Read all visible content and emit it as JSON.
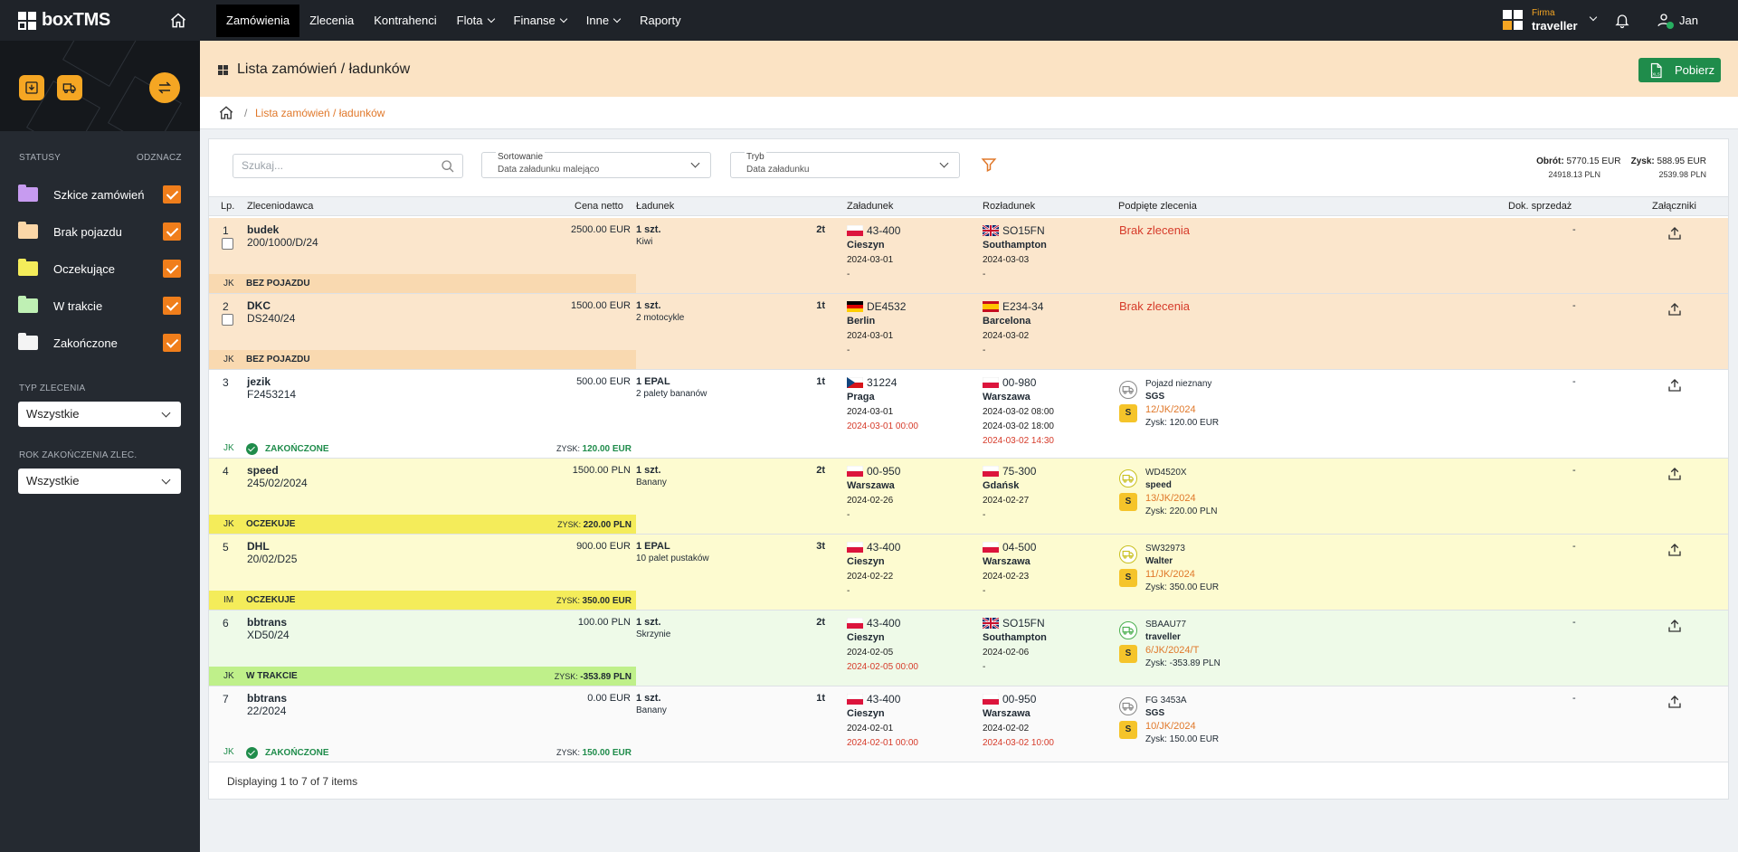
{
  "app": {
    "name": "boxTMS"
  },
  "nav": [
    "Zamówienia",
    "Zlecenia",
    "Kontrahenci",
    "Flota",
    "Finanse",
    "Inne",
    "Raporty"
  ],
  "firm": {
    "label": "Firma",
    "name": "traveller"
  },
  "user": {
    "name": "Jan"
  },
  "sidebar": {
    "statuses_title": "STATUSY",
    "statuses_toggle": "ODZNACZ",
    "statuses": [
      "Szkice zamówień",
      "Brak pojazdu",
      "Oczekujące",
      "W trakcie",
      "Zakończone"
    ],
    "type_title": "TYP ZLECENIA",
    "type_value": "Wszystkie",
    "year_title": "ROK ZAKOŃCZENIA ZLEC.",
    "year_value": "Wszystkie"
  },
  "page": {
    "title": "Lista zamówień / ładunków",
    "xls_label": "Pobierz",
    "xls_tag": "XLS",
    "breadcrumb": "Lista zamówień / ładunków"
  },
  "filters": {
    "search_placeholder": "Szukaj...",
    "sort_label": "Sortowanie",
    "sort_value": "Data załadunku malejąco",
    "mode_label": "Tryb",
    "mode_value": "Data załadunku"
  },
  "totals": {
    "obrot_label": "Obrót:",
    "obrot": "5770.15 EUR",
    "zysk_label": "Zysk:",
    "zysk": "588.95 EUR",
    "obrot_pln": "24918.13 PLN",
    "zysk_pln": "2539.98 PLN"
  },
  "columns": [
    "Lp.",
    "Zleceniodawca",
    "Cena netto",
    "Ładunek",
    "Załadunek",
    "Rozładunek",
    "Podpięte zlecenia",
    "Dok. sprzedaż",
    "Załączniki"
  ],
  "rows": [
    {
      "lp": "1",
      "client": "budek",
      "ref": "200/1000/D/24",
      "price": "2500.00 EUR",
      "cargo": "1 szt.",
      "cargo_desc": "Kiwi",
      "ton": "2t",
      "load_code": "43-400",
      "load_city": "Cieszyn",
      "load_date": "2024-03-01",
      "load_extra": "-",
      "unload_code": "SO15FN",
      "unload_city": "Southampton",
      "unload_date": "2024-03-03",
      "unload_extra": "-",
      "brak": "Brak zlecenia",
      "dok": "-",
      "initials": "JK",
      "status": "BEZ POJAZDU"
    },
    {
      "lp": "2",
      "client": "DKC",
      "ref": "DS240/24",
      "price": "1500.00 EUR",
      "cargo": "1 szt.",
      "cargo_desc": "2 motocykle",
      "ton": "1t",
      "load_code": "DE4532",
      "load_city": "Berlin",
      "load_date": "2024-03-01",
      "load_extra": "-",
      "unload_code": "E234-34",
      "unload_city": "Barcelona",
      "unload_date": "2024-03-02",
      "unload_extra": "-",
      "brak": "Brak zlecenia",
      "dok": "-",
      "initials": "JK",
      "status": "BEZ POJAZDU"
    },
    {
      "lp": "3",
      "client": "jezik",
      "ref": "F2453214",
      "price": "500.00 EUR",
      "cargo": "1 EPAL",
      "cargo_desc": "2 palety bananów",
      "ton": "1t",
      "load_code": "31224",
      "load_city": "Praga",
      "load_date": "2024-03-01",
      "load_extra": "2024-03-01 00:00",
      "unload_code": "00-980",
      "unload_city": "Warszawa",
      "unload_date": "2024-03-02 08:00",
      "unload_date2": "2024-03-02 18:00",
      "unload_extra": "2024-03-02 14:30",
      "veh": "Pojazd nieznany",
      "carrier": "SGS",
      "order": "12/JK/2024",
      "vzysk": "Zysk: 120.00 EUR",
      "dok": "-",
      "initials": "JK",
      "status": "ZAKOŃCZONE",
      "zysk_label": "ZYSK:",
      "zysk": "120.00 EUR"
    },
    {
      "lp": "4",
      "client": "speed",
      "ref": "245/02/2024",
      "price": "1500.00 PLN",
      "cargo": "1 szt.",
      "cargo_desc": "Banany",
      "ton": "2t",
      "load_code": "00-950",
      "load_city": "Warszawa",
      "load_date": "2024-02-26",
      "load_extra": "-",
      "unload_code": "75-300",
      "unload_city": "Gdańsk",
      "unload_date": "2024-02-27",
      "unload_extra": "-",
      "veh": "WD4520X",
      "carrier": "speed",
      "order": "13/JK/2024",
      "vzysk": "Zysk: 220.00 PLN",
      "dok": "-",
      "initials": "JK",
      "status": "OCZEKUJE",
      "zysk_label": "ZYSK:",
      "zysk": "220.00 PLN"
    },
    {
      "lp": "5",
      "client": "DHL",
      "ref": "20/02/D25",
      "price": "900.00 EUR",
      "cargo": "1 EPAL",
      "cargo_desc": "10 palet pustaków",
      "ton": "3t",
      "load_code": "43-400",
      "load_city": "Cieszyn",
      "load_date": "2024-02-22",
      "load_extra": "-",
      "unload_code": "04-500",
      "unload_city": "Warszawa",
      "unload_date": "2024-02-23",
      "unload_extra": "-",
      "veh": "SW32973",
      "carrier": "Walter",
      "order": "11/JK/2024",
      "vzysk": "Zysk: 350.00 EUR",
      "dok": "-",
      "initials": "IM",
      "status": "OCZEKUJE",
      "zysk_label": "ZYSK:",
      "zysk": "350.00 EUR"
    },
    {
      "lp": "6",
      "client": "bbtrans",
      "ref": "XD50/24",
      "price": "100.00 PLN",
      "cargo": "1 szt.",
      "cargo_desc": "Skrzynie",
      "ton": "2t",
      "load_code": "43-400",
      "load_city": "Cieszyn",
      "load_date": "2024-02-05",
      "load_extra": "2024-02-05 00:00",
      "unload_code": "SO15FN",
      "unload_city": "Southampton",
      "unload_date": "2024-02-06",
      "unload_extra": "-",
      "veh": "SBAAU77",
      "carrier": "traveller",
      "order": "6/JK/2024/T",
      "vzysk": "Zysk: -353.89 PLN",
      "dok": "-",
      "initials": "JK",
      "status": "W TRAKCIE",
      "zysk_label": "ZYSK:",
      "zysk": "-353.89 PLN"
    },
    {
      "lp": "7",
      "client": "bbtrans",
      "ref": "22/2024",
      "price": "0.00 EUR",
      "cargo": "1 szt.",
      "cargo_desc": "Banany",
      "ton": "1t",
      "load_code": "43-400",
      "load_city": "Cieszyn",
      "load_date": "2024-02-01",
      "load_extra": "2024-02-01 00:00",
      "unload_code": "00-950",
      "unload_city": "Warszawa",
      "unload_date": "2024-02-02",
      "unload_extra": "2024-03-02 10:00",
      "veh": "FG 3453A",
      "carrier": "SGS",
      "order": "10/JK/2024",
      "vzysk": "Zysk: 150.00 EUR",
      "dok": "-",
      "initials": "JK",
      "status": "ZAKOŃCZONE",
      "zysk_label": "ZYSK:",
      "zysk": "150.00 EUR"
    }
  ],
  "pager": "Displaying 1 to 7 of 7 items",
  "badge": {
    "s": "S"
  }
}
